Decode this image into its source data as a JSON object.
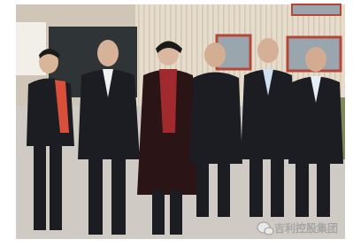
{
  "watermark": {
    "text": "吉利控股集团"
  }
}
